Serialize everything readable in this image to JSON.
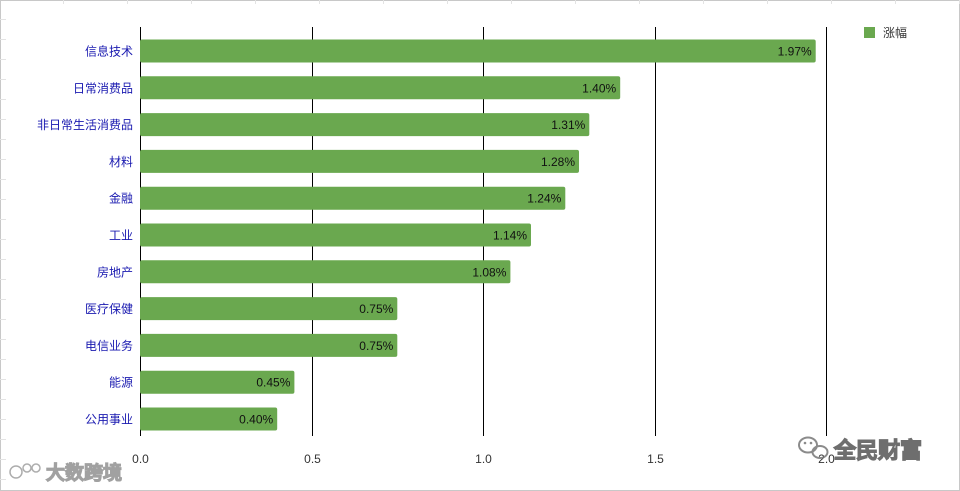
{
  "chart_data": {
    "type": "bar",
    "orientation": "horizontal",
    "categories": [
      "信息技术",
      "日常消费品",
      "非日常生活消费品",
      "材料",
      "金融",
      "工业",
      "房地产",
      "医疗保健",
      "电信业务",
      "能源",
      "公用事业"
    ],
    "series": [
      {
        "name": "涨幅",
        "values": [
          1.97,
          1.4,
          1.31,
          1.28,
          1.24,
          1.14,
          1.08,
          0.75,
          0.75,
          0.45,
          0.4
        ],
        "labels": [
          "1.97%",
          "1.40%",
          "1.31%",
          "1.28%",
          "1.24%",
          "1.14%",
          "1.08%",
          "0.75%",
          "0.75%",
          "0.45%",
          "0.40%"
        ]
      }
    ],
    "xlim": [
      0,
      2.0
    ],
    "xticks": [
      "0.0",
      "0.5",
      "1.0",
      "1.5",
      "2.0"
    ],
    "grid": "vertical",
    "legend": "top-right",
    "colors": {
      "bar": "#6aa84f",
      "grid": "#000000",
      "category_text": "#1a1ab0"
    }
  },
  "watermarks": {
    "left": "大数跨境",
    "right": "全民财富"
  }
}
